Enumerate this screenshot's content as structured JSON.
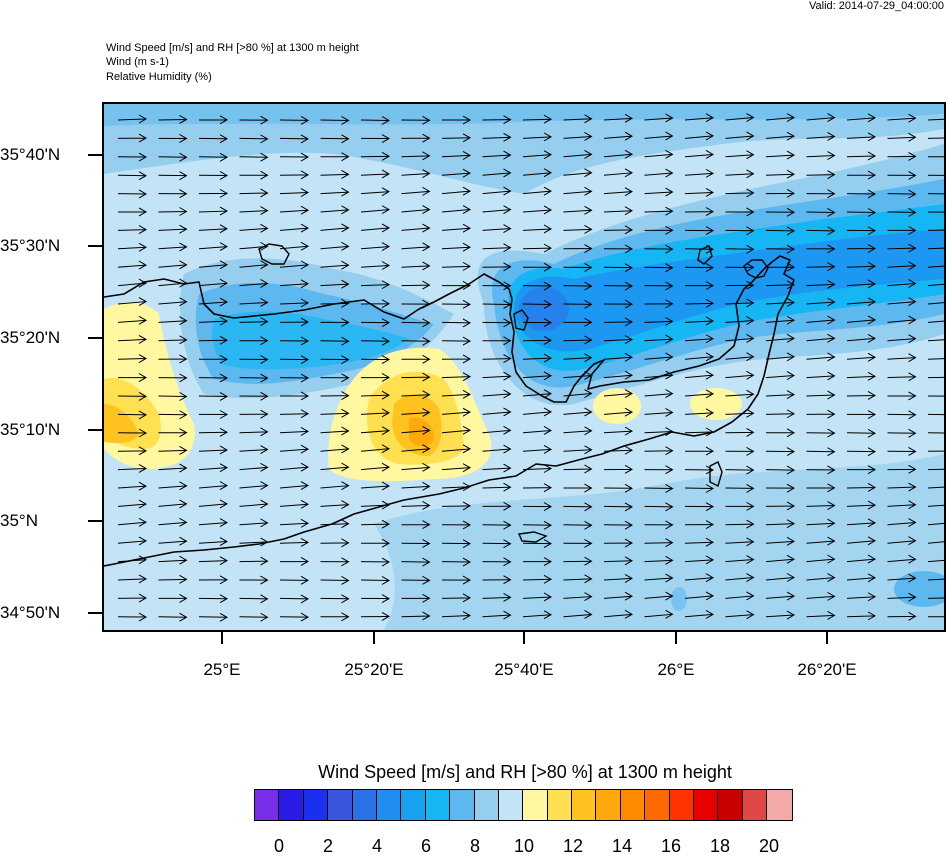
{
  "valid_time": "Valid: 2014-07-29_04:00:00",
  "header": {
    "line1": "Wind Speed [m/s] and RH [>80 %] at 1300 m height",
    "line2": "Wind   (m s-1)",
    "line3": "Relative Humidity   (%)"
  },
  "map": {
    "lat_labels": [
      "35°40'N",
      "35°30'N",
      "35°20'N",
      "35°10'N",
      "35°N",
      "34°50'N"
    ],
    "lon_labels": [
      "25°E",
      "25°20'E",
      "25°40'E",
      "26°E",
      "26°20'E"
    ],
    "wind_arrow_color": "#000000",
    "land_outline": "Crete north coast",
    "wind_direction": "eastward",
    "grid": false
  },
  "colorbar": {
    "title": "Wind Speed [m/s] and RH [>80 %] at 1300 m height",
    "colors": [
      "#7a2ee8",
      "#2a1be6",
      "#1a2ff0",
      "#3a56e0",
      "#2b72e8",
      "#1f8ef0",
      "#17a2f0",
      "#16b6f5",
      "#5cb8ee",
      "#96cef0",
      "#c2e4f6",
      "#fff8a0",
      "#ffe050",
      "#ffc21f",
      "#ffa90d",
      "#ff8a00",
      "#ff6a00",
      "#ff3300",
      "#e80000",
      "#c80000",
      "#e04848",
      "#f4a8a8"
    ],
    "labels": [
      "0",
      "2",
      "4",
      "6",
      "8",
      "10",
      "12",
      "14",
      "16",
      "18",
      "20"
    ]
  }
}
